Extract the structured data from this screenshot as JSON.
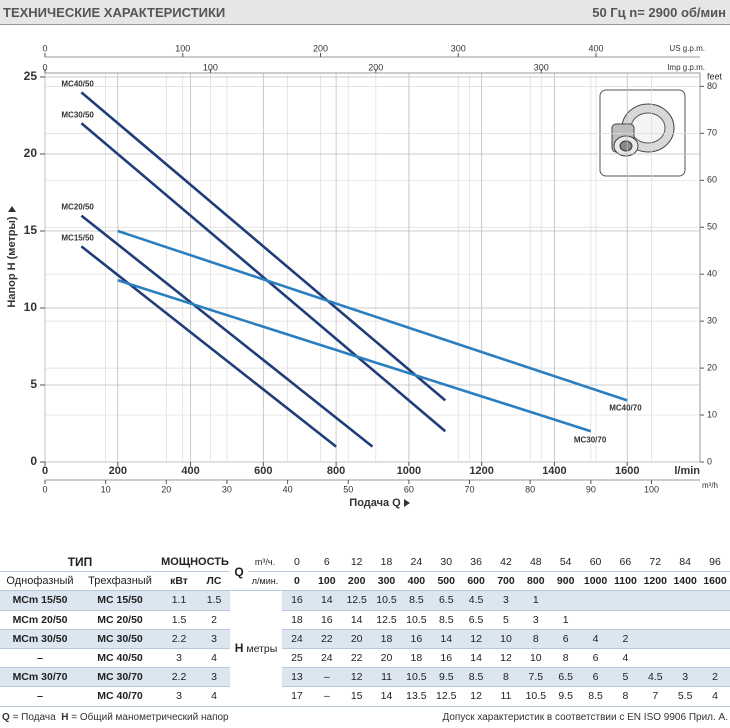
{
  "header": {
    "title": "ТЕХНИЧЕСКИЕ ХАРАКТЕРИСТИКИ",
    "speed": "50 Гц   n= 2900 об/мин"
  },
  "chart_data": {
    "type": "line",
    "x_label": "Подача Q",
    "y_label": "Напор H (метры)",
    "x_unit": "l/min",
    "xlim": [
      0,
      1800
    ],
    "xticks": [
      0,
      200,
      400,
      600,
      800,
      1000,
      1200,
      1400,
      1600
    ],
    "ylim": [
      0,
      25
    ],
    "yticks": [
      0,
      5,
      10,
      15,
      20,
      25
    ],
    "y2_unit": "feet",
    "y2lim": [
      0,
      82
    ],
    "y2ticks": [
      0,
      10,
      20,
      30,
      40,
      50,
      60,
      70,
      80
    ],
    "top_axes": [
      {
        "unit": "US g.p.m.",
        "lim": [
          0,
          475.5
        ],
        "ticks": [
          0,
          100,
          200,
          300,
          400
        ]
      },
      {
        "unit": "Imp g.p.m.",
        "lim": [
          0,
          396
        ],
        "ticks": [
          0,
          100,
          200,
          300
        ]
      }
    ],
    "bottom_axis2": {
      "unit": "m³/h",
      "lim": [
        0,
        108
      ],
      "ticks": [
        0,
        10,
        20,
        30,
        40,
        50,
        60,
        70,
        80,
        90,
        100
      ]
    },
    "grid": true,
    "series": [
      {
        "name": "MC40/50",
        "color": "#1f3e78",
        "x": [
          100,
          1100
        ],
        "values": [
          24,
          4
        ]
      },
      {
        "name": "MC30/50",
        "color": "#1f3e78",
        "x": [
          100,
          1100
        ],
        "values": [
          22,
          2
        ]
      },
      {
        "name": "MC20/50",
        "color": "#1f3e78",
        "x": [
          100,
          900
        ],
        "values": [
          16,
          1
        ]
      },
      {
        "name": "MC15/50",
        "color": "#1f3e78",
        "x": [
          100,
          800
        ],
        "values": [
          14,
          1
        ]
      },
      {
        "name": "MC40/70",
        "color": "#2b7fc0",
        "x": [
          200,
          1600
        ],
        "values": [
          15,
          4
        ]
      },
      {
        "name": "MC30/70",
        "color": "#2b7fc0",
        "x": [
          200,
          1500
        ],
        "values": [
          11.8,
          2
        ]
      }
    ]
  },
  "table": {
    "head": {
      "type": "ТИП",
      "power": "МОЩНОСТЬ",
      "q": "Q",
      "q_unit_m3": "m³/ч.",
      "q_unit_l": "л/мин.",
      "single": "Однофазный",
      "three": "Трехфазный",
      "kw": "кВт",
      "hp": "ЛС",
      "h": "H",
      "h_unit": "метры"
    },
    "q_m3h": [
      0,
      6,
      12,
      18,
      24,
      30,
      36,
      42,
      48,
      54,
      60,
      66,
      72,
      84,
      96
    ],
    "q_lmin": [
      0,
      100,
      200,
      300,
      400,
      500,
      600,
      700,
      800,
      900,
      1000,
      1100,
      1200,
      1400,
      1600
    ],
    "rows": [
      {
        "single": "MCm 15/50",
        "three": "MC 15/50",
        "kw": 1.1,
        "hp": 1.5,
        "h": [
          16,
          14,
          12.5,
          10.5,
          8.5,
          6.5,
          4.5,
          3,
          1,
          null,
          null,
          null,
          null,
          null,
          null
        ]
      },
      {
        "single": "MCm 20/50",
        "three": "MC 20/50",
        "kw": 1.5,
        "hp": 2,
        "h": [
          18,
          16,
          14,
          12.5,
          10.5,
          8.5,
          6.5,
          5,
          3,
          1,
          null,
          null,
          null,
          null,
          null
        ]
      },
      {
        "single": "MCm 30/50",
        "three": "MC 30/50",
        "kw": 2.2,
        "hp": 3,
        "h": [
          24,
          22,
          20,
          18,
          16,
          14,
          12,
          10,
          8,
          6,
          4,
          2,
          null,
          null,
          null
        ]
      },
      {
        "single": "–",
        "three": "MC 40/50",
        "kw": 3,
        "hp": 4,
        "h": [
          25,
          24,
          22,
          20,
          18,
          16,
          14,
          12,
          10,
          8,
          6,
          4,
          null,
          null,
          null
        ]
      },
      {
        "single": "MCm 30/70",
        "three": "MC 30/70",
        "kw": 2.2,
        "hp": 3,
        "h": [
          13,
          "–",
          12,
          11,
          10.5,
          9.5,
          8.5,
          8,
          7.5,
          6.5,
          6,
          5,
          4.5,
          3,
          2
        ]
      },
      {
        "single": "–",
        "three": "MC 40/70",
        "kw": 3,
        "hp": 4,
        "h": [
          17,
          "–",
          15,
          14,
          13.5,
          12.5,
          12,
          11,
          10.5,
          9.5,
          8.5,
          8,
          7,
          5.5,
          4
        ]
      }
    ]
  },
  "footer": {
    "q": "Q",
    "q_text": "= Подача",
    "h": "H",
    "h_text": "= Общий манометрический напор",
    "tolerance": "Допуск характеристик в соответствии с EN ISO 9906 Прил. A."
  }
}
